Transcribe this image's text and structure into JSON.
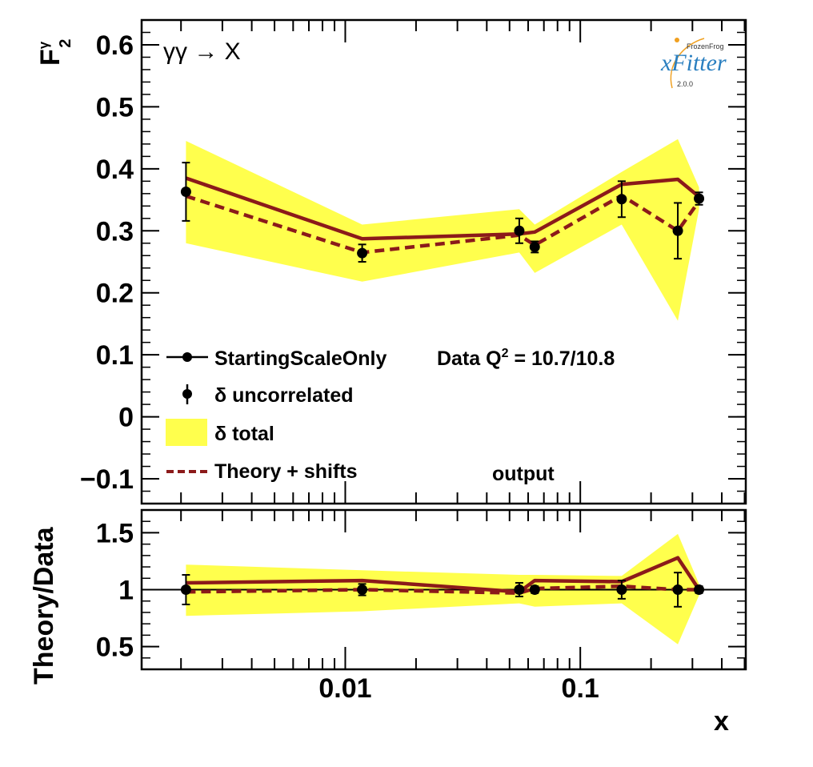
{
  "chart_data": [
    {
      "type": "line",
      "panel": "top",
      "annotation": "γγ → X",
      "ylabel": "F",
      "ylabel_sup": "γ",
      "ylabel_sub": "2",
      "xscale": "log",
      "ylim": [
        -0.14,
        0.64
      ],
      "y_ticks": [
        -0.1,
        0,
        0.1,
        0.2,
        0.3,
        0.4,
        0.5,
        0.6
      ],
      "y_tick_labels": [
        "−0.1",
        "0",
        "0.1",
        "0.2",
        "0.3",
        "0.4",
        "0.5",
        "0.6"
      ],
      "x": [
        0.0021,
        0.0118,
        0.055,
        0.064,
        0.15,
        0.26,
        0.32
      ],
      "series": [
        {
          "name": "StartingScaleOnly",
          "style": "solid",
          "color": "#8b1a1a",
          "values": [
            0.385,
            0.287,
            0.295,
            0.298,
            0.375,
            0.383,
            0.355
          ]
        },
        {
          "name": "Theory + shifts",
          "style": "dashed",
          "color": "#8b1a1a",
          "values": [
            0.356,
            0.265,
            0.293,
            0.277,
            0.357,
            0.3,
            0.348
          ]
        }
      ],
      "data_points": {
        "name": "δ uncorrelated",
        "values": [
          0.363,
          0.264,
          0.3,
          0.274,
          0.351,
          0.3,
          0.352
        ],
        "errors": [
          0.047,
          0.014,
          0.02,
          0.009,
          0.029,
          0.045,
          0.01
        ]
      },
      "band": {
        "name": "δ total",
        "color": "#ffff4d",
        "upper": [
          0.445,
          0.31,
          0.335,
          0.31,
          0.395,
          0.448,
          0.37
        ],
        "lower": [
          0.28,
          0.218,
          0.265,
          0.232,
          0.31,
          0.155,
          0.335
        ]
      },
      "legend": {
        "placement": "bottom-left",
        "entries": [
          "StartingScaleOnly",
          "δ uncorrelated",
          "δ total",
          "Theory + shifts"
        ],
        "header": "Data Q",
        "header_sup": "2",
        "header_rest": " = 10.7/10.8",
        "note": "output"
      }
    },
    {
      "type": "line",
      "panel": "bottom",
      "ylabel": "Theory/Data",
      "xlabel": "x",
      "xscale": "log",
      "ylim": [
        0.3,
        1.7
      ],
      "y_ticks": [
        0.5,
        1,
        1.5
      ],
      "y_tick_labels": [
        "0.5",
        "1",
        "1.5"
      ],
      "x_tick_labels": [
        {
          "x": 0.01,
          "label": "0.01"
        },
        {
          "x": 0.1,
          "label": "0.1"
        }
      ],
      "reference_line": 1,
      "x": [
        0.0021,
        0.0118,
        0.055,
        0.064,
        0.15,
        0.26,
        0.32
      ],
      "series": [
        {
          "name": "StartingScaleOnly",
          "style": "solid",
          "color": "#8b1a1a",
          "values": [
            1.06,
            1.08,
            0.98,
            1.08,
            1.07,
            1.28,
            1.0
          ]
        },
        {
          "name": "Theory + shifts",
          "style": "dashed",
          "color": "#8b1a1a",
          "values": [
            0.98,
            1.0,
            0.97,
            1.01,
            1.03,
            1.0,
            1.0
          ]
        }
      ],
      "data_points": {
        "name": "δ uncorrelated",
        "values": [
          1.0,
          1.0,
          1.0,
          1.0,
          1.0,
          1.0,
          1.0
        ],
        "errors": [
          0.13,
          0.05,
          0.06,
          0.03,
          0.08,
          0.15,
          0.03
        ]
      },
      "band": {
        "name": "δ total",
        "color": "#ffff4d",
        "upper": [
          1.22,
          1.17,
          1.13,
          1.13,
          1.12,
          1.49,
          1.05
        ],
        "lower": [
          0.77,
          0.81,
          0.88,
          0.85,
          0.88,
          0.52,
          0.95
        ]
      }
    }
  ],
  "logo": {
    "top": "FrozenFrog",
    "main": "xFitter",
    "version": "2.0.0"
  }
}
